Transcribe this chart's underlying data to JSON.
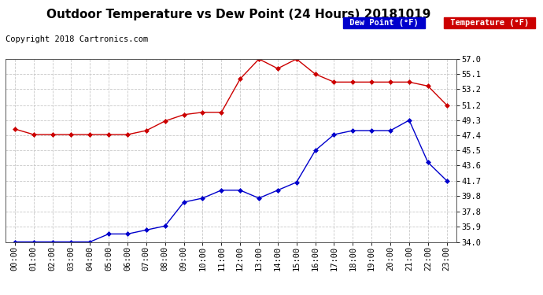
{
  "title": "Outdoor Temperature vs Dew Point (24 Hours) 20181019",
  "copyright": "Copyright 2018 Cartronics.com",
  "x_labels": [
    "00:00",
    "01:00",
    "02:00",
    "03:00",
    "04:00",
    "05:00",
    "06:00",
    "07:00",
    "08:00",
    "09:00",
    "10:00",
    "11:00",
    "12:00",
    "13:00",
    "14:00",
    "15:00",
    "16:00",
    "17:00",
    "18:00",
    "19:00",
    "20:00",
    "21:00",
    "22:00",
    "23:00"
  ],
  "temperature": [
    48.2,
    47.5,
    47.5,
    47.5,
    47.5,
    47.5,
    47.5,
    48.0,
    49.2,
    50.0,
    50.3,
    50.3,
    54.5,
    57.0,
    55.8,
    57.0,
    55.1,
    54.1,
    54.1,
    54.1,
    54.1,
    54.1,
    53.6,
    51.2
  ],
  "dew_point": [
    34.0,
    34.0,
    34.0,
    34.0,
    34.0,
    35.0,
    35.0,
    35.5,
    36.0,
    39.0,
    39.5,
    40.5,
    40.5,
    39.5,
    40.5,
    41.5,
    45.5,
    47.5,
    48.0,
    48.0,
    48.0,
    49.3,
    44.0,
    41.7
  ],
  "temp_color": "#cc0000",
  "dew_color": "#0000cc",
  "marker": "D",
  "marker_size": 3,
  "linewidth": 1.0,
  "ylim_min": 34.0,
  "ylim_max": 57.0,
  "yticks": [
    34.0,
    35.9,
    37.8,
    39.8,
    41.7,
    43.6,
    45.5,
    47.4,
    49.3,
    51.2,
    53.2,
    55.1,
    57.0
  ],
  "background_color": "#ffffff",
  "grid_color": "#c8c8c8",
  "legend_temp_label": "Temperature (°F)",
  "legend_dew_label": "Dew Point (°F)",
  "legend_dew_bg": "#0000cc",
  "legend_temp_bg": "#cc0000",
  "title_fontsize": 11,
  "tick_fontsize": 7.5,
  "copyright_fontsize": 7.5
}
